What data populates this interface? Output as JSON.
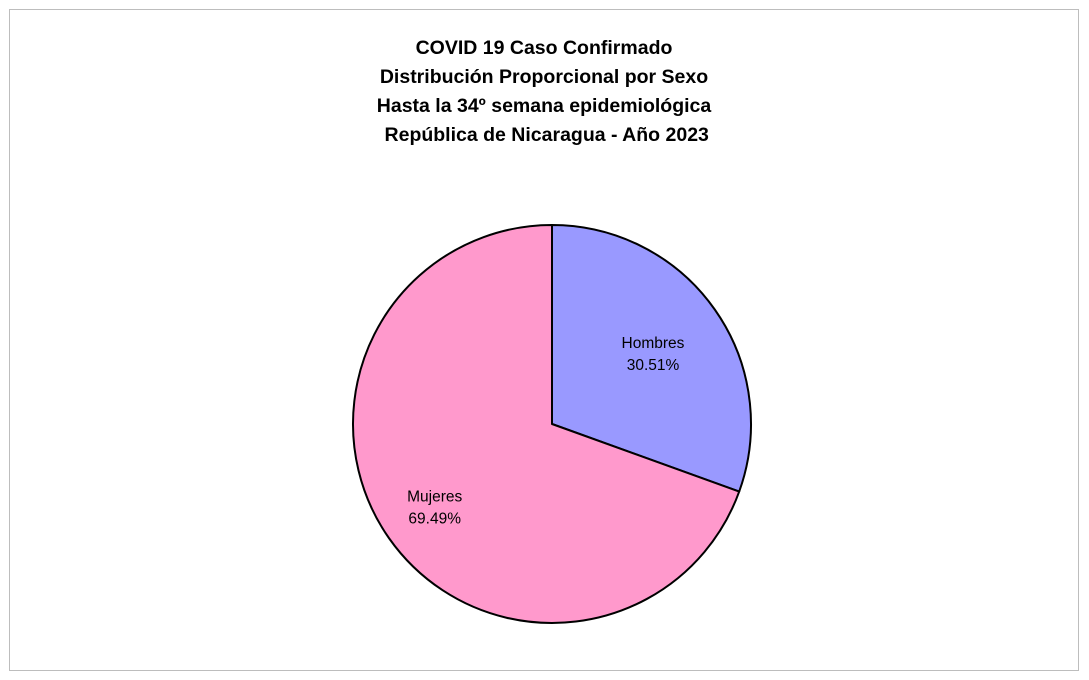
{
  "chart_data": {
    "type": "pie",
    "title_lines": [
      "COVID 19 Caso Confirmado",
      "Distribución Proporcional por Sexo",
      "Hasta la 34º semana epidemiológica",
      " República de Nicaragua - Año 2023"
    ],
    "slices": [
      {
        "name": "Hombres",
        "value": 30.51,
        "label": "30.51%",
        "color": "#9999ff"
      },
      {
        "name": "Mujeres",
        "value": 69.49,
        "label": "69.49%",
        "color": "#ff99cc"
      }
    ],
    "start_angle": "12 o'clock",
    "direction": "clockwise",
    "legend": "none",
    "border_color": "#000000"
  }
}
